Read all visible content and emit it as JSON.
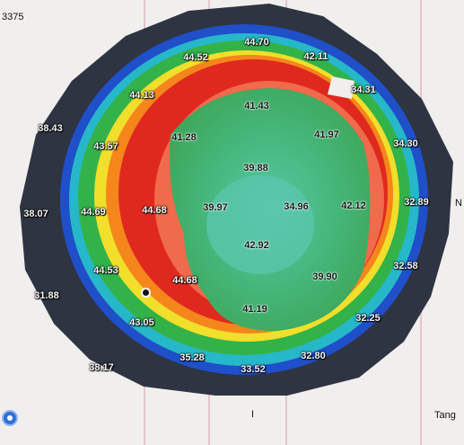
{
  "header": {
    "top_left_id": "3375"
  },
  "footer": {
    "right_label": "Tang",
    "bottom_tick": "I"
  },
  "axis_marks": {
    "right_edge": "N"
  },
  "colors": {
    "background": "#f1efee",
    "outer_ring": "#2c3340",
    "blue_band": "#1f4fc9",
    "cyan_band": "#23b7c9",
    "green_band": "#31b44a",
    "yellow_band": "#f2e22a",
    "orange_band": "#f28a1e",
    "red_band": "#e0261c",
    "center": "#4fbf8d"
  },
  "values": [
    {
      "text": "44.70"
    },
    {
      "text": "44.52"
    },
    {
      "text": "42.11"
    },
    {
      "text": "44.13"
    },
    {
      "text": "41.43"
    },
    {
      "text": "38.43"
    },
    {
      "text": "41.28"
    },
    {
      "text": "41.97"
    },
    {
      "text": "43.57"
    },
    {
      "text": "39.88"
    },
    {
      "text": "44.69"
    },
    {
      "text": "44.68"
    },
    {
      "text": "39.97"
    },
    {
      "text": "34.96"
    },
    {
      "text": "42.12"
    },
    {
      "text": "38.07"
    },
    {
      "text": "42.92"
    },
    {
      "text": "44.53"
    },
    {
      "text": "44.68"
    },
    {
      "text": "39.90"
    },
    {
      "text": "31.88"
    },
    {
      "text": "41.19"
    },
    {
      "text": "43.05"
    },
    {
      "text": "35.28"
    },
    {
      "text": "38.17"
    },
    {
      "text": "33.52"
    },
    {
      "text": "32.80"
    },
    {
      "text": "32.25"
    },
    {
      "text": "32.58"
    },
    {
      "text": "32.89"
    },
    {
      "text": "34.30"
    },
    {
      "text": "34.31"
    }
  ]
}
